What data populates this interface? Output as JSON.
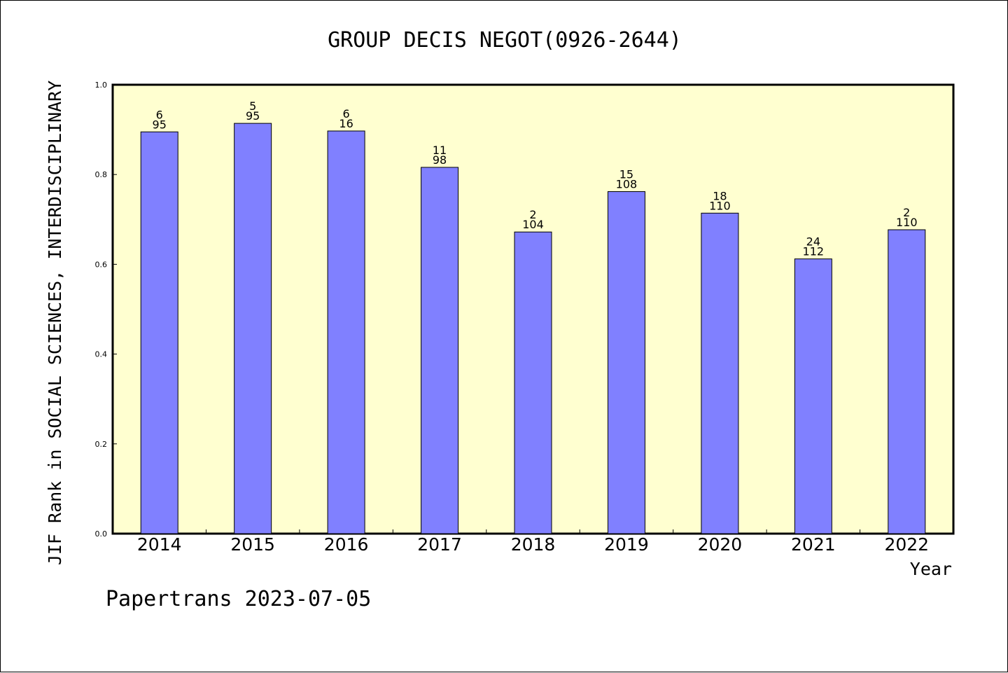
{
  "chart_data": {
    "type": "bar",
    "title": "GROUP DECIS NEGOT(0926-2644)",
    "xlabel": "Year",
    "ylabel": "JIF Rank in SOCIAL SCIENCES, INTERDISCIPLINARY",
    "ylim": [
      0,
      1.0
    ],
    "yticks": [
      "0.0",
      "0.2",
      "0.4",
      "0.6",
      "0.8",
      "1.0"
    ],
    "grid": false,
    "categories": [
      "2014",
      "2015",
      "2016",
      "2017",
      "2018",
      "2019",
      "2020",
      "2021",
      "2022"
    ],
    "values": [
      0.895,
      0.914,
      0.897,
      0.816,
      0.672,
      0.762,
      0.714,
      0.612,
      0.677
    ],
    "labels": [
      {
        "rank": "6",
        "total": "95"
      },
      {
        "rank": "5",
        "total": "95"
      },
      {
        "rank": "6",
        "total": "16"
      },
      {
        "rank": "11",
        "total": "98"
      },
      {
        "rank": "2",
        "total": "104"
      },
      {
        "rank": "15",
        "total": "108"
      },
      {
        "rank": "18",
        "total": "110"
      },
      {
        "rank": "24",
        "total": "112"
      },
      {
        "rank": "2",
        "total": "110"
      }
    ],
    "colors": {
      "bar": "#8080ff",
      "plot_background": "#ffffd0",
      "axes": "#000000"
    }
  },
  "footer": "Papertrans 2023-07-05"
}
